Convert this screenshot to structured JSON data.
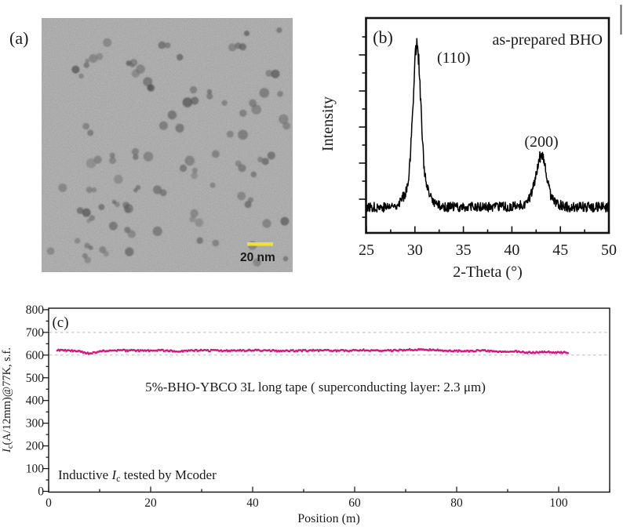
{
  "figure": {
    "panel_a": {
      "label": "(a)",
      "scale_bar_text": "20 nm"
    },
    "panel_b": {
      "label": "(b)",
      "title_annotation": "as-prepared BHO",
      "peak_labels": [
        "(110)",
        "(200)"
      ],
      "xlabel": "2-Theta (°)",
      "ylabel": "Intensity"
    },
    "panel_c": {
      "label": "(c)",
      "annotation": "5%-BHO-YBCO 3L long tape ( superconducting layer: 2.3 μm)",
      "note": {
        "pre": "Inductive ",
        "italic": "I",
        "sub": "c",
        "post": " tested by Mcoder"
      },
      "xlabel": "Position (m)",
      "ylabel": {
        "italic": "I",
        "sub": "c",
        "rest": "(A/12mm)@77K, s.f."
      }
    }
  },
  "colors": {
    "data_pink": "#D6147E",
    "scale_bar_yellow": "#EDE22E",
    "axis_black": "#111111",
    "grid_dash": "#bbbbbb",
    "tem_background": "#a7a7a7",
    "curve_black": "#000000"
  },
  "chart_data": [
    {
      "type": "line",
      "panel": "b",
      "title": "as-prepared BHO",
      "xlabel": "2-Theta (°)",
      "ylabel": "Intensity",
      "xlim": [
        25,
        50
      ],
      "x_ticks": [
        25,
        30,
        35,
        40,
        45,
        50
      ],
      "x_minor_ticks": [
        27.5,
        32.5,
        37.5,
        42.5,
        47.5
      ],
      "y_axis": "arbitrary intensity, unlabeled ticks",
      "baseline_relative_intensity": 0.12,
      "peaks": [
        {
          "two_theta": 30.2,
          "hkl": "(110)",
          "relative_intensity": 0.9,
          "sigma": 0.38
        },
        {
          "two_theta": 43.0,
          "hkl": "(200)",
          "relative_intensity": 0.36,
          "sigma": 0.5
        }
      ],
      "line_color": "#000000",
      "legend": "none",
      "grid": "off"
    },
    {
      "type": "scatter",
      "panel": "c",
      "title": "",
      "xlabel": "Position (m)",
      "ylabel": "Ic(A/12mm)@77K, s.f.",
      "xlim": [
        0,
        110
      ],
      "ylim": [
        0,
        800
      ],
      "x_ticks": [
        0,
        20,
        40,
        60,
        80,
        100
      ],
      "y_ticks": [
        0,
        100,
        200,
        300,
        400,
        500,
        600,
        700,
        800
      ],
      "dashed_reference_lines": [
        600,
        700
      ],
      "grid": "dashed horizontal at 600 and 700 only",
      "legend": "none",
      "series": [
        {
          "name": "Inductive Ic vs position",
          "color": "#D6147E",
          "marker": "small square",
          "x": [
            1.7,
            4,
            6,
            8,
            10,
            14,
            18,
            22,
            26,
            30,
            34,
            38,
            42,
            46,
            50,
            54,
            58,
            62,
            66,
            70,
            74,
            78,
            82,
            85,
            88,
            91,
            94,
            97,
            100,
            102
          ],
          "y": [
            622,
            620,
            616,
            607,
            617,
            621,
            619,
            621,
            617,
            621,
            619,
            621,
            621,
            618,
            620,
            621,
            619,
            622,
            619,
            623,
            624,
            619,
            617,
            621,
            613,
            617,
            611,
            614,
            612,
            610
          ]
        }
      ],
      "annotations": [
        "5%-BHO-YBCO 3L long tape ( superconducting layer: 2.3 μm)",
        "Inductive Ic tested by Mcoder"
      ]
    }
  ]
}
